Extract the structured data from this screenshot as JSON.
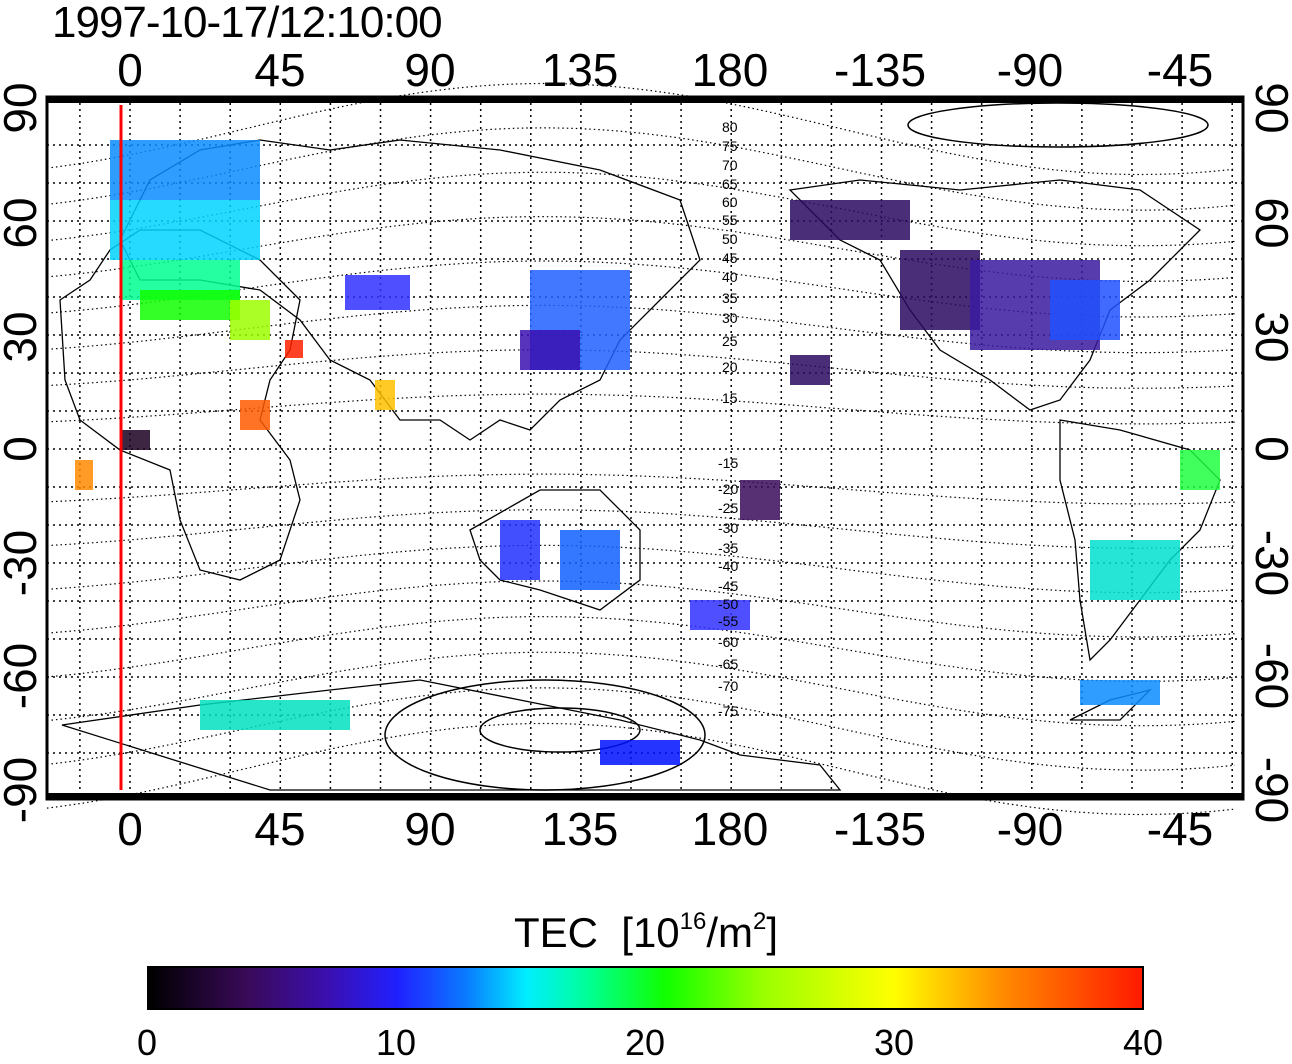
{
  "title": "1997-10-17/12:10:00",
  "map": {
    "lon_ticks_top": [
      "0",
      "45",
      "90",
      "135",
      "180",
      "-135",
      "-90",
      "-45"
    ],
    "lon_ticks_bottom": [
      "0",
      "45",
      "90",
      "135",
      "180",
      "-135",
      "-90",
      "-45"
    ],
    "lat_ticks_left": [
      "90",
      "60",
      "30",
      "0",
      "-30",
      "-60",
      "-90"
    ],
    "lat_ticks_right": [
      "90",
      "60",
      "30",
      "0",
      "-30",
      "-60",
      "-90"
    ],
    "mag_lat_labels_north": [
      "80",
      "75",
      "70",
      "65",
      "60",
      "55",
      "50",
      "45",
      "40",
      "35",
      "30",
      "25",
      "20",
      "15"
    ],
    "mag_lat_labels_south": [
      "-15",
      "-20",
      "-25",
      "-30",
      "-35",
      "-40",
      "-45",
      "-50",
      "-55",
      "-60",
      "-65",
      "-70",
      "-75"
    ],
    "marker_color": "#ff0000"
  },
  "colorbar": {
    "label": "TEC",
    "unit_prefix": "[10",
    "unit_exp1": "16",
    "unit_mid": "/m",
    "unit_exp2": "2",
    "unit_suffix": "]",
    "ticks": [
      "0",
      "10",
      "20",
      "30",
      "40"
    ],
    "range": [
      0,
      40
    ]
  }
}
